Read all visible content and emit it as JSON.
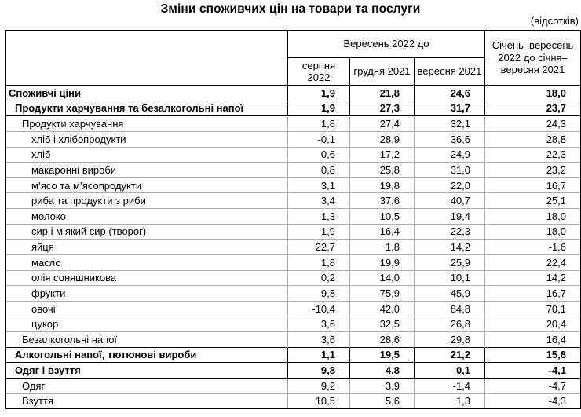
{
  "colors": {
    "background": "#ffffff",
    "text": "#000000",
    "border_dark": "#000000",
    "border_light": "#adadad"
  },
  "chart_data": {
    "type": "table",
    "title": "Зміни споживчих цін на товари та послуги",
    "unit": "(відсотків)",
    "column_group": "Вересень 2022 до",
    "columns": [
      "серпня 2022",
      "грудня 2021",
      "вересня 2021",
      "Січень–вересень 2022 до січня–вересня 2021"
    ],
    "rows": [
      {
        "label": "Споживчі ціни",
        "level": 0,
        "bold": true,
        "values": [
          "1,9",
          "21,8",
          "24,6",
          "18,0"
        ]
      },
      {
        "label": "Продукти харчування та безалкогольні напої",
        "level": 1,
        "bold": true,
        "values": [
          "1,9",
          "27,3",
          "31,7",
          "23,7"
        ]
      },
      {
        "label": "Продукти харчування",
        "level": 2,
        "bold": false,
        "values": [
          "1,8",
          "27,4",
          "32,1",
          "24,3"
        ]
      },
      {
        "label": "хліб і хлібопродукти",
        "level": 3,
        "bold": false,
        "values": [
          "-0,1",
          "28,9",
          "36,6",
          "28,8"
        ]
      },
      {
        "label": "хліб",
        "level": 3,
        "bold": false,
        "values": [
          "0,6",
          "17,2",
          "24,9",
          "22,3"
        ]
      },
      {
        "label": "макаронні вироби",
        "level": 3,
        "bold": false,
        "values": [
          "0,8",
          "25,8",
          "31,0",
          "23,2"
        ]
      },
      {
        "label": "м’ясо та м’ясопродукти",
        "level": 3,
        "bold": false,
        "values": [
          "3,1",
          "19,8",
          "22,0",
          "16,7"
        ]
      },
      {
        "label": "риба та продукти з риби",
        "level": 3,
        "bold": false,
        "values": [
          "3,4",
          "37,6",
          "40,7",
          "25,1"
        ]
      },
      {
        "label": "молоко",
        "level": 3,
        "bold": false,
        "values": [
          "1,3",
          "10,5",
          "19,4",
          "18,0"
        ]
      },
      {
        "label": "сир і м’який сир (творог)",
        "level": 3,
        "bold": false,
        "values": [
          "1,9",
          "16,4",
          "22,3",
          "18,0"
        ]
      },
      {
        "label": "яйця",
        "level": 3,
        "bold": false,
        "values": [
          "22,7",
          "1,8",
          "14,2",
          "-1,6"
        ]
      },
      {
        "label": "масло",
        "level": 3,
        "bold": false,
        "values": [
          "1,8",
          "19,9",
          "25,9",
          "22,4"
        ]
      },
      {
        "label": "олія соняшникова",
        "level": 3,
        "bold": false,
        "values": [
          "0,2",
          "14,0",
          "10,1",
          "14,2"
        ]
      },
      {
        "label": "фрукти",
        "level": 3,
        "bold": false,
        "values": [
          "9,8",
          "75,9",
          "45,9",
          "16,7"
        ]
      },
      {
        "label": "овочі",
        "level": 3,
        "bold": false,
        "values": [
          "-10,4",
          "42,0",
          "84,8",
          "70,1"
        ]
      },
      {
        "label": "цукор",
        "level": 3,
        "bold": false,
        "values": [
          "3,6",
          "32,5",
          "26,8",
          "20,4"
        ]
      },
      {
        "label": "Безалкогольні напої",
        "level": 2,
        "bold": false,
        "values": [
          "3,6",
          "28,6",
          "29,8",
          "16,4"
        ]
      },
      {
        "label": "Алкогольні напої, тютюнові вироби",
        "level": 1,
        "bold": true,
        "values": [
          "1,1",
          "19,5",
          "21,2",
          "15,8"
        ]
      },
      {
        "label": "Одяг і взуття",
        "level": 1,
        "bold": true,
        "values": [
          "9,8",
          "4,8",
          "0,1",
          "-4,1"
        ]
      },
      {
        "label": "Одяг",
        "level": 2,
        "bold": false,
        "values": [
          "9,2",
          "3,9",
          "-1,4",
          "-4,7"
        ]
      },
      {
        "label": "Взуття",
        "level": 2,
        "bold": false,
        "values": [
          "10,5",
          "5,6",
          "1,3",
          "-4,3"
        ]
      }
    ]
  }
}
